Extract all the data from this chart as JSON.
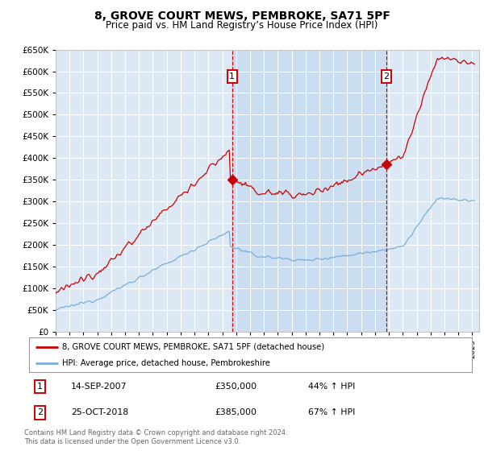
{
  "title": "8, GROVE COURT MEWS, PEMBROKE, SA71 5PF",
  "subtitle": "Price paid vs. HM Land Registry’s House Price Index (HPI)",
  "legend_line1": "8, GROVE COURT MEWS, PEMBROKE, SA71 5PF (detached house)",
  "legend_line2": "HPI: Average price, detached house, Pembrokeshire",
  "sale1_date": "14-SEP-2007",
  "sale1_price": 350000,
  "sale1_label": "£350,000",
  "sale1_pct": "44% ↑ HPI",
  "sale1_year": 2007.71,
  "sale2_date": "25-OCT-2018",
  "sale2_price": 385000,
  "sale2_label": "£385,000",
  "sale2_pct": "67% ↑ HPI",
  "sale2_year": 2018.81,
  "footer1": "Contains HM Land Registry data © Crown copyright and database right 2024.",
  "footer2": "This data is licensed under the Open Government Licence v3.0.",
  "plot_bg_color": "#dce9f5",
  "shade_color": "#c5d8ee",
  "red_line_color": "#cc0000",
  "blue_line_color": "#7aaed6",
  "ylim_min": 0,
  "ylim_max": 650000,
  "xlim_min": 1995,
  "xlim_max": 2025.5
}
